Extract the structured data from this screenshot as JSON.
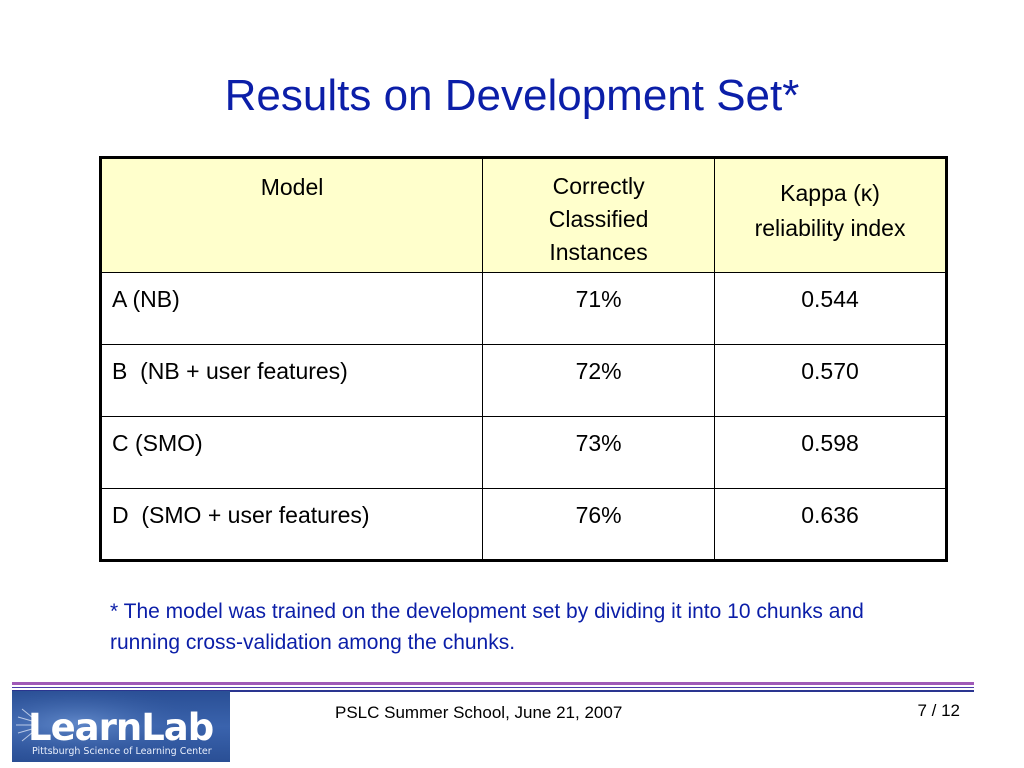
{
  "slide": {
    "title": "Results on Development Set*",
    "footnote": "* The model was trained on the development set by dividing it into 10 chunks and running cross-validation among the chunks."
  },
  "table": {
    "headers": {
      "model": "Model",
      "correct_lines": [
        "Correctly",
        "Classified",
        "Instances"
      ],
      "kappa_lines": [
        "Kappa (κ)",
        "reliability index"
      ]
    },
    "rows": [
      {
        "model": "A (NB)",
        "correct": "71%",
        "kappa": "0.544"
      },
      {
        "model": "B  (NB + user features)",
        "correct": "72%",
        "kappa": "0.570"
      },
      {
        "model": "C (SMO)",
        "correct": "73%",
        "kappa": "0.598"
      },
      {
        "model": "D  (SMO + user features)",
        "correct": "76%",
        "kappa": "0.636"
      }
    ],
    "header_bg": "#ffffcc"
  },
  "footer": {
    "text": "PSLC Summer School, June 21, 2007",
    "page": "7 / 12",
    "logo_text": "LearnLab",
    "logo_subtext": "Pittsburgh Science of Learning Center"
  },
  "colors": {
    "title": "#0b1ea8",
    "footnote": "#0b1ea8",
    "rule_purple": "#a05ab8",
    "rule_blue": "#2a3590",
    "logo_bg": "#2a4f95"
  }
}
